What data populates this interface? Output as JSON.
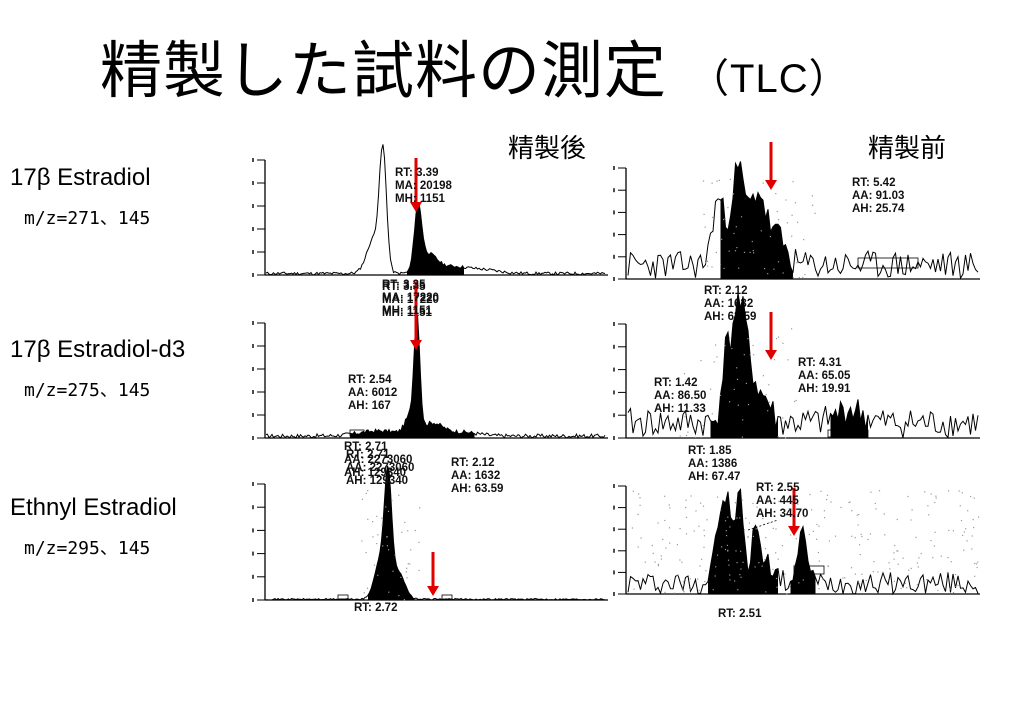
{
  "title": {
    "main": "精製した試料の測定",
    "sub": "（TLC）"
  },
  "columns": [
    {
      "label": "精製後"
    },
    {
      "label": "精製前"
    }
  ],
  "rows": [
    {
      "name": "17β Estradiol",
      "mz": "m/z=271、145"
    },
    {
      "name": "17β Estradiol-d3",
      "mz": "m/z=275、145"
    },
    {
      "name": "Ethnyl Estradiol",
      "mz": "m/z=295、145"
    }
  ],
  "colors": {
    "arrow": "#e00000",
    "trace": "#000000"
  },
  "chart_data": [
    {
      "type": "line",
      "row": 0,
      "column": "精製後",
      "annotations": [
        [
          "RT: 3.39",
          "MA: 20198",
          "MH: 1151"
        ],
        [
          "RT: 3.35",
          "MA: 17220",
          "MH: 1151"
        ]
      ],
      "arrow_rt": 3.39
    },
    {
      "type": "line",
      "row": 0,
      "column": "精製前",
      "annotations": [
        [
          "RT: 5.42",
          "AA: 91.03",
          "AH: 25.74"
        ],
        [
          "RT: 2.12",
          "AA: 1632",
          "AH: 63.59"
        ]
      ]
    },
    {
      "type": "line",
      "row": 1,
      "column": "精製後",
      "annotations": [
        [
          "RT: 2.54",
          "AA: 6012",
          "AH: 167"
        ],
        [
          "RT: 2.71",
          "AA: 2273060",
          "AH: 129340"
        ]
      ]
    },
    {
      "type": "line",
      "row": 1,
      "column": "精製前",
      "annotations": [
        [
          "RT: 1.42",
          "AA: 86.50",
          "AH: 11.33"
        ],
        [
          "RT: 4.31",
          "AA: 65.05",
          "AH: 19.91"
        ],
        [
          "RT: 1.85",
          "AA: 1386",
          "AH: 67.47"
        ]
      ]
    },
    {
      "type": "line",
      "row": 2,
      "column": "精製後",
      "annotations": [
        [
          "RT: 2.72"
        ]
      ]
    },
    {
      "type": "line",
      "row": 2,
      "column": "精製前",
      "annotations": [
        [
          "RT: 2.55",
          "AA: 445",
          "AH: 34.70"
        ],
        [
          "RT: 2.51"
        ]
      ]
    }
  ]
}
